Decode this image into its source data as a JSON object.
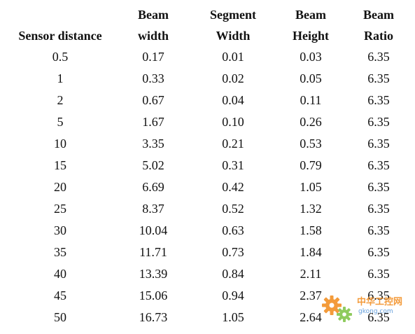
{
  "table": {
    "headers": [
      [
        "",
        "Sensor distance"
      ],
      [
        "Beam",
        "width"
      ],
      [
        "Segment",
        "Width"
      ],
      [
        "Beam",
        "Height"
      ],
      [
        "Beam",
        "Ratio"
      ]
    ],
    "rows": [
      [
        "0.5",
        "0.17",
        "0.01",
        "0.03",
        "6.35"
      ],
      [
        "1",
        "0.33",
        "0.02",
        "0.05",
        "6.35"
      ],
      [
        "2",
        "0.67",
        "0.04",
        "0.11",
        "6.35"
      ],
      [
        "5",
        "1.67",
        "0.10",
        "0.26",
        "6.35"
      ],
      [
        "10",
        "3.35",
        "0.21",
        "0.53",
        "6.35"
      ],
      [
        "15",
        "5.02",
        "0.31",
        "0.79",
        "6.35"
      ],
      [
        "20",
        "6.69",
        "0.42",
        "1.05",
        "6.35"
      ],
      [
        "25",
        "8.37",
        "0.52",
        "1.32",
        "6.35"
      ],
      [
        "30",
        "10.04",
        "0.63",
        "1.58",
        "6.35"
      ],
      [
        "35",
        "11.71",
        "0.73",
        "1.84",
        "6.35"
      ],
      [
        "40",
        "13.39",
        "0.84",
        "2.11",
        "6.35"
      ],
      [
        "45",
        "15.06",
        "0.94",
        "2.37",
        "6.35"
      ],
      [
        "50",
        "16.73",
        "1.05",
        "2.64",
        "6.35"
      ]
    ]
  },
  "watermark": {
    "site": "中华工控网",
    "url": "gkong.com",
    "icon": "gear-icon",
    "colors": {
      "orange": "#f28a1a",
      "green": "#7cc242",
      "blue": "#4a8fd6"
    }
  }
}
